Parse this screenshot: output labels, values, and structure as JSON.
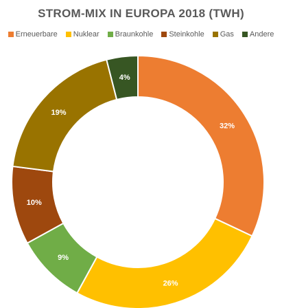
{
  "chart_data": {
    "type": "pie",
    "title": "STROM-MIX IN EUROPA 2018 (TWH)",
    "categories": [
      "Erneuerbare",
      "Nuklear",
      "Braunkohle",
      "Steinkohle",
      "Gas",
      "Andere"
    ],
    "values": [
      32,
      26,
      9,
      10,
      19,
      4
    ],
    "labels": [
      "32%",
      "26%",
      "9%",
      "10%",
      "19%",
      "4%"
    ],
    "colors": [
      "#ed7d31",
      "#ffc000",
      "#70ad47",
      "#9e480e",
      "#997300",
      "#375623"
    ],
    "legend_position": "top",
    "donut": true
  }
}
